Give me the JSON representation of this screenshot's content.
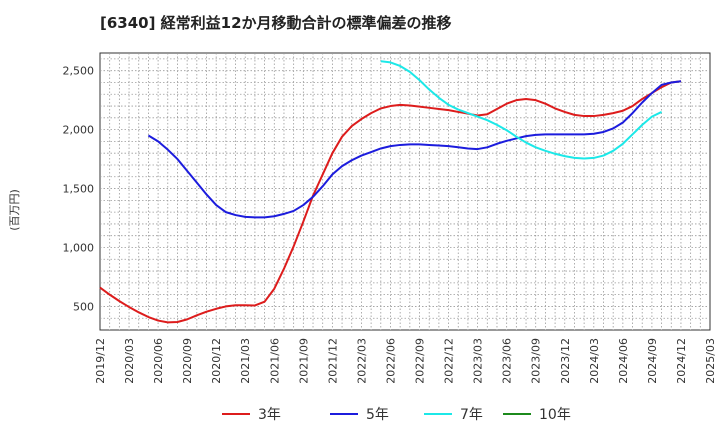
{
  "chart_data": {
    "type": "line",
    "title": "[6340]  経常利益12か月移動合計の標準偏差の推移",
    "ylabel": "(百万円)",
    "xlabel": "",
    "ylim": [
      300,
      2650
    ],
    "yticks": [
      500,
      1000,
      1500,
      2000,
      2500
    ],
    "ytick_labels": [
      "500",
      "1,000",
      "1,500",
      "2,000",
      "2,500"
    ],
    "xticks": [
      "2019/12",
      "2020/03",
      "2020/06",
      "2020/09",
      "2020/12",
      "2021/03",
      "2021/06",
      "2021/09",
      "2021/12",
      "2022/03",
      "2022/06",
      "2022/09",
      "2022/12",
      "2023/03",
      "2023/06",
      "2023/09",
      "2023/12",
      "2024/03",
      "2024/06",
      "2024/09",
      "2024/12",
      "2025/03"
    ],
    "grid": true,
    "legend_position": "bottom",
    "series": [
      {
        "name": "3年",
        "color": "#dd1c1c",
        "values": [
          [
            "2019/12",
            660
          ],
          [
            "2020/01",
            600
          ],
          [
            "2020/02",
            545
          ],
          [
            "2020/03",
            495
          ],
          [
            "2020/04",
            450
          ],
          [
            "2020/05",
            410
          ],
          [
            "2020/06",
            380
          ],
          [
            "2020/07",
            365
          ],
          [
            "2020/08",
            368
          ],
          [
            "2020/09",
            390
          ],
          [
            "2020/10",
            425
          ],
          [
            "2020/11",
            455
          ],
          [
            "2020/12",
            480
          ],
          [
            "2021/01",
            500
          ],
          [
            "2021/02",
            510
          ],
          [
            "2021/03",
            510
          ],
          [
            "2021/04",
            508
          ],
          [
            "2021/05",
            540
          ],
          [
            "2021/06",
            650
          ],
          [
            "2021/07",
            820
          ],
          [
            "2021/08",
            1010
          ],
          [
            "2021/09",
            1220
          ],
          [
            "2021/10",
            1440
          ],
          [
            "2021/11",
            1620
          ],
          [
            "2021/12",
            1800
          ],
          [
            "2022/01",
            1940
          ],
          [
            "2022/02",
            2030
          ],
          [
            "2022/03",
            2090
          ],
          [
            "2022/04",
            2140
          ],
          [
            "2022/05",
            2180
          ],
          [
            "2022/06",
            2200
          ],
          [
            "2022/07",
            2210
          ],
          [
            "2022/08",
            2205
          ],
          [
            "2022/09",
            2195
          ],
          [
            "2022/10",
            2185
          ],
          [
            "2022/11",
            2175
          ],
          [
            "2022/12",
            2165
          ],
          [
            "2023/01",
            2150
          ],
          [
            "2023/02",
            2135
          ],
          [
            "2023/03",
            2120
          ],
          [
            "2023/04",
            2130
          ],
          [
            "2023/05",
            2175
          ],
          [
            "2023/06",
            2220
          ],
          [
            "2023/07",
            2250
          ],
          [
            "2023/08",
            2260
          ],
          [
            "2023/09",
            2250
          ],
          [
            "2023/10",
            2220
          ],
          [
            "2023/11",
            2180
          ],
          [
            "2023/12",
            2150
          ],
          [
            "2023/01",
            2150
          ],
          [
            "2024/01",
            2125
          ],
          [
            "2024/02",
            2115
          ],
          [
            "2024/03",
            2115
          ],
          [
            "2024/04",
            2125
          ],
          [
            "2024/05",
            2140
          ],
          [
            "2024/06",
            2160
          ],
          [
            "2024/07",
            2200
          ],
          [
            "2024/08",
            2260
          ],
          [
            "2024/09",
            2310
          ],
          [
            "2024/10",
            2360
          ],
          [
            "2024/11",
            2400
          ],
          [
            "2024/12",
            2410
          ]
        ]
      },
      {
        "name": "5年",
        "color": "#1c1cdd",
        "values": [
          [
            "2020/05",
            1950
          ],
          [
            "2020/06",
            1900
          ],
          [
            "2020/07",
            1830
          ],
          [
            "2020/08",
            1750
          ],
          [
            "2020/09",
            1650
          ],
          [
            "2020/10",
            1550
          ],
          [
            "2020/11",
            1450
          ],
          [
            "2020/12",
            1360
          ],
          [
            "2021/01",
            1300
          ],
          [
            "2021/02",
            1275
          ],
          [
            "2021/03",
            1260
          ],
          [
            "2021/04",
            1255
          ],
          [
            "2021/05",
            1255
          ],
          [
            "2021/06",
            1265
          ],
          [
            "2021/07",
            1285
          ],
          [
            "2021/08",
            1310
          ],
          [
            "2021/09",
            1360
          ],
          [
            "2021/10",
            1430
          ],
          [
            "2021/11",
            1520
          ],
          [
            "2021/12",
            1620
          ],
          [
            "2022/01",
            1690
          ],
          [
            "2022/02",
            1740
          ],
          [
            "2022/03",
            1780
          ],
          [
            "2022/04",
            1810
          ],
          [
            "2022/05",
            1840
          ],
          [
            "2022/06",
            1860
          ],
          [
            "2022/07",
            1870
          ],
          [
            "2022/08",
            1875
          ],
          [
            "2022/09",
            1875
          ],
          [
            "2022/10",
            1870
          ],
          [
            "2022/11",
            1865
          ],
          [
            "2022/12",
            1860
          ],
          [
            "2023/01",
            1850
          ],
          [
            "2023/02",
            1840
          ],
          [
            "2023/03",
            1835
          ],
          [
            "2023/04",
            1850
          ],
          [
            "2023/05",
            1880
          ],
          [
            "2023/06",
            1905
          ],
          [
            "2023/07",
            1925
          ],
          [
            "2023/08",
            1945
          ],
          [
            "2023/09",
            1955
          ],
          [
            "2023/10",
            1960
          ],
          [
            "2023/11",
            1960
          ],
          [
            "2023/12",
            1960
          ],
          [
            "2024/01",
            1960
          ],
          [
            "2024/02",
            1960
          ],
          [
            "2024/03",
            1965
          ],
          [
            "2024/04",
            1980
          ],
          [
            "2024/05",
            2010
          ],
          [
            "2024/06",
            2060
          ],
          [
            "2024/07",
            2140
          ],
          [
            "2024/08",
            2230
          ],
          [
            "2024/09",
            2310
          ],
          [
            "2024/10",
            2380
          ],
          [
            "2024/11",
            2400
          ],
          [
            "2024/12",
            2410
          ]
        ]
      },
      {
        "name": "7年",
        "color": "#1ce8e8",
        "values": [
          [
            "2022/05",
            2580
          ],
          [
            "2022/06",
            2570
          ],
          [
            "2022/07",
            2540
          ],
          [
            "2022/08",
            2490
          ],
          [
            "2022/09",
            2420
          ],
          [
            "2022/10",
            2340
          ],
          [
            "2022/11",
            2270
          ],
          [
            "2022/12",
            2210
          ],
          [
            "2023/01",
            2170
          ],
          [
            "2023/02",
            2140
          ],
          [
            "2023/03",
            2110
          ],
          [
            "2023/04",
            2080
          ],
          [
            "2023/05",
            2040
          ],
          [
            "2023/06",
            1995
          ],
          [
            "2023/07",
            1940
          ],
          [
            "2023/08",
            1890
          ],
          [
            "2023/09",
            1850
          ],
          [
            "2023/10",
            1820
          ],
          [
            "2023/11",
            1795
          ],
          [
            "2023/12",
            1775
          ],
          [
            "2024/01",
            1760
          ],
          [
            "2024/02",
            1755
          ],
          [
            "2024/03",
            1760
          ],
          [
            "2024/04",
            1780
          ],
          [
            "2024/05",
            1820
          ],
          [
            "2024/06",
            1880
          ],
          [
            "2024/07",
            1960
          ],
          [
            "2024/08",
            2040
          ],
          [
            "2024/09",
            2110
          ],
          [
            "2024/10",
            2150
          ]
        ]
      },
      {
        "name": "10年",
        "color": "#1c8a1c",
        "values": []
      }
    ]
  }
}
